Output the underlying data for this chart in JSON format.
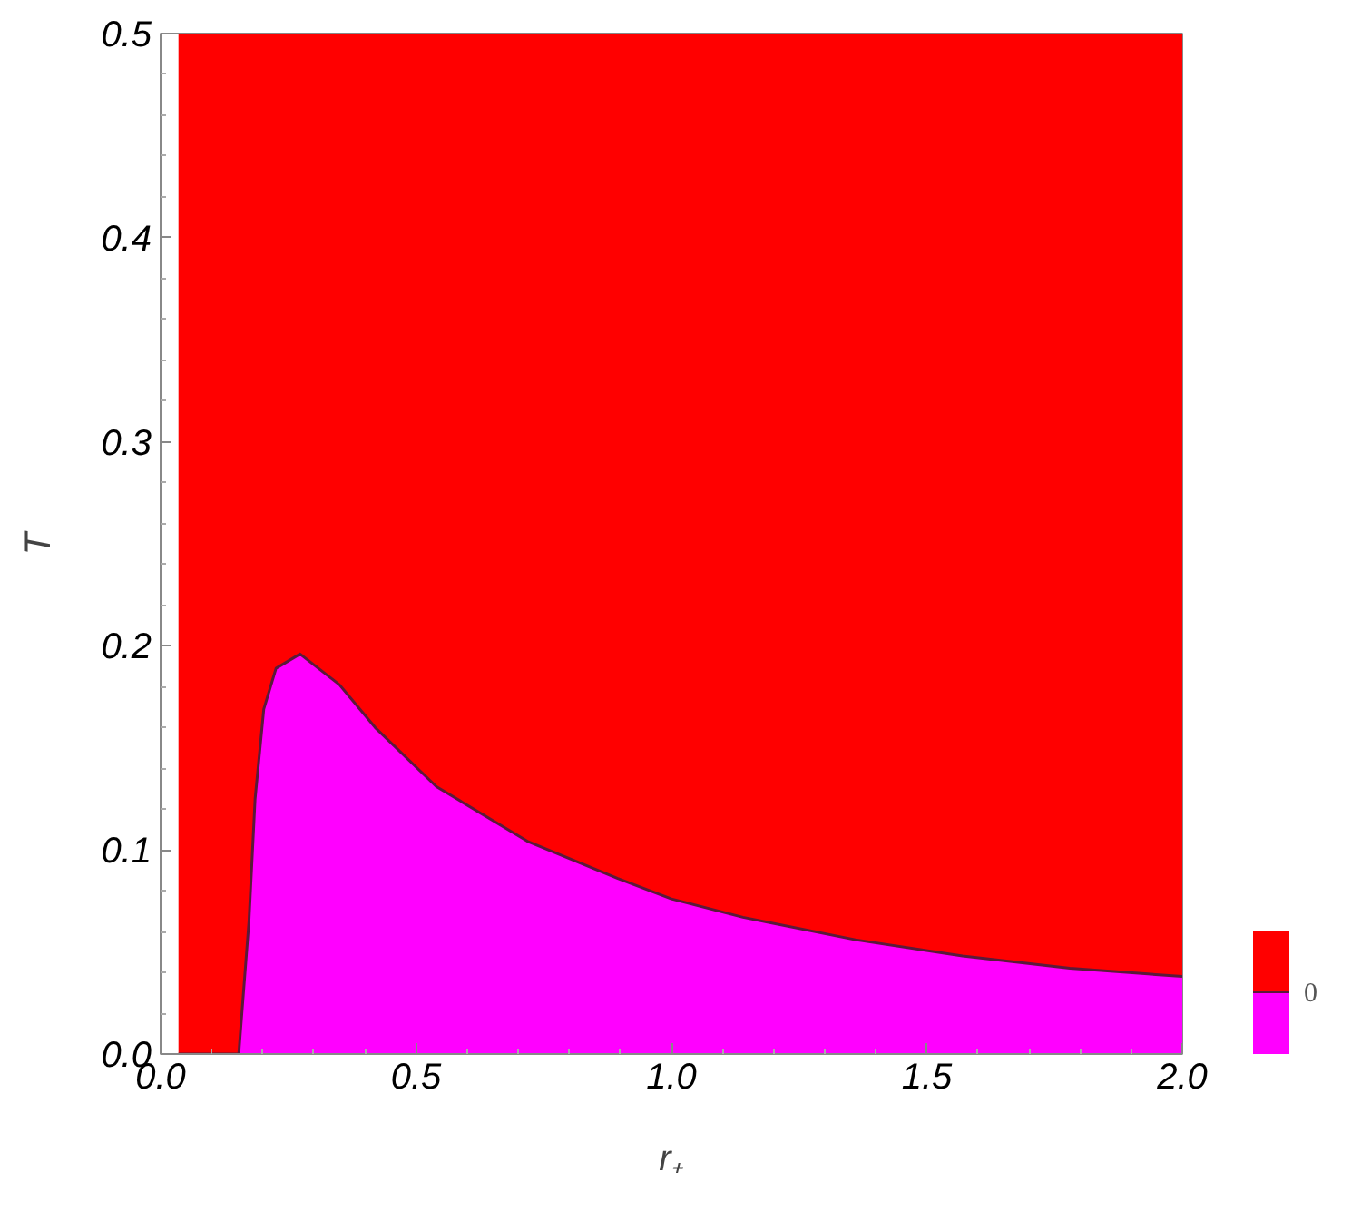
{
  "chart_data": {
    "type": "area",
    "xlabel": "r₊",
    "ylabel": "T",
    "x": [
      0.035,
      0.153,
      0.173,
      0.185,
      0.202,
      0.226,
      0.273,
      0.35,
      0.42,
      0.54,
      0.72,
      0.895,
      1.0,
      1.14,
      1.36,
      1.57,
      1.78,
      2.0
    ],
    "series": [
      {
        "color": "#ff00ff",
        "values": [
          0,
          0,
          0.065,
          0.125,
          0.169,
          0.189,
          0.196,
          0.181,
          0.16,
          0.131,
          0.104,
          0.086,
          0.076,
          0.067,
          0.056,
          0.048,
          0.042,
          0.038
        ]
      }
    ],
    "bands": [
      {
        "axis": "x",
        "from": 0.035,
        "to": 2,
        "color": "#ff0000"
      }
    ],
    "xlim": [
      0,
      2
    ],
    "ylim": [
      0,
      0.5
    ],
    "xticks": [
      {
        "value": 0,
        "label": "0.0"
      },
      0.5,
      {
        "value": 1,
        "label": "1.0"
      },
      1.5,
      {
        "value": 2,
        "label": "2.0"
      }
    ],
    "yticks": [
      {
        "value": 0,
        "label": "0.0"
      },
      0.1,
      0.2,
      0.3,
      0.4,
      0.5
    ],
    "grid": false,
    "annotations": [
      "0"
    ]
  }
}
